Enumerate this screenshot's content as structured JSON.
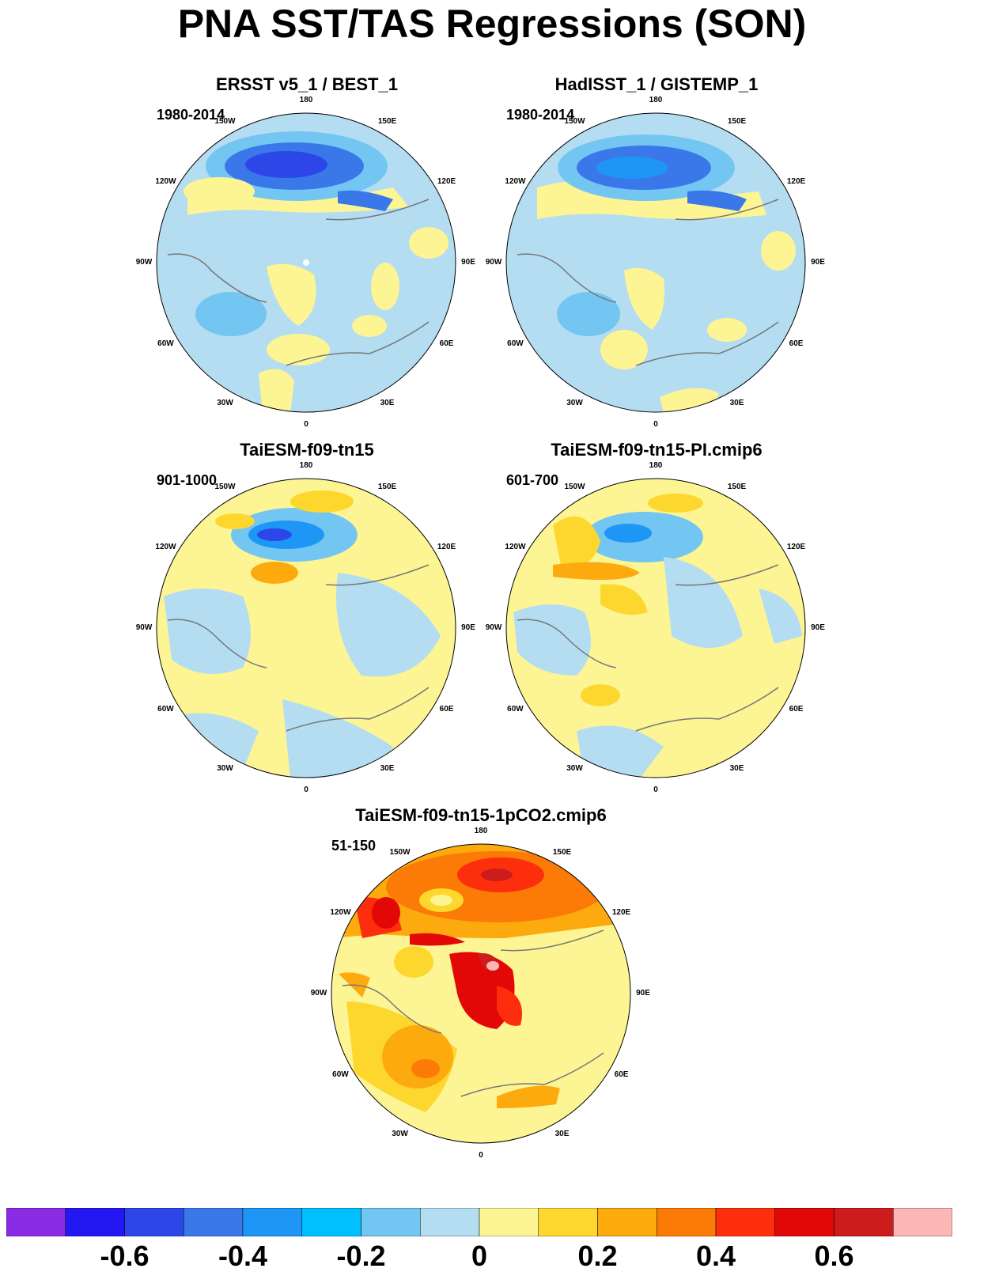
{
  "title": "PNA SST/TAS Regressions (SON)",
  "longitude_labels": [
    "180",
    "150E",
    "120E",
    "90E",
    "60E",
    "30E",
    "0",
    "30W",
    "60W",
    "90W",
    "120W",
    "150W"
  ],
  "panels": [
    {
      "title": "ERSST v5_1 / BEST_1",
      "period": "1980-2014"
    },
    {
      "title": "HadISST_1 / GISTEMP_1",
      "period": "1980-2014"
    },
    {
      "title": "TaiESM-f09-tn15",
      "period": "901-1000"
    },
    {
      "title": "TaiESM-f09-tn15-PI.cmip6",
      "period": "601-700"
    },
    {
      "title": "TaiESM-f09-tn15-1pCO2.cmip6",
      "period": "51-150"
    }
  ],
  "colorbar": {
    "colors": [
      "#8a2be6",
      "#2318f2",
      "#2d46e8",
      "#3a78ea",
      "#1e96f5",
      "#00c0ff",
      "#74c6f2",
      "#b4ddf2",
      "#fdf594",
      "#fdd72e",
      "#fcaa0e",
      "#fb7b06",
      "#fd2e0c",
      "#e30808",
      "#cd1c1c",
      "#fdb6b6"
    ],
    "tick_labels": [
      "-0.6",
      "-0.4",
      "-0.2",
      "0",
      "0.2",
      "0.4",
      "0.6"
    ],
    "tick_values": [
      -0.6,
      -0.4,
      -0.2,
      0,
      0.2,
      0.4,
      0.6
    ],
    "min": -0.8,
    "max": 0.8,
    "interval": 0.1
  }
}
